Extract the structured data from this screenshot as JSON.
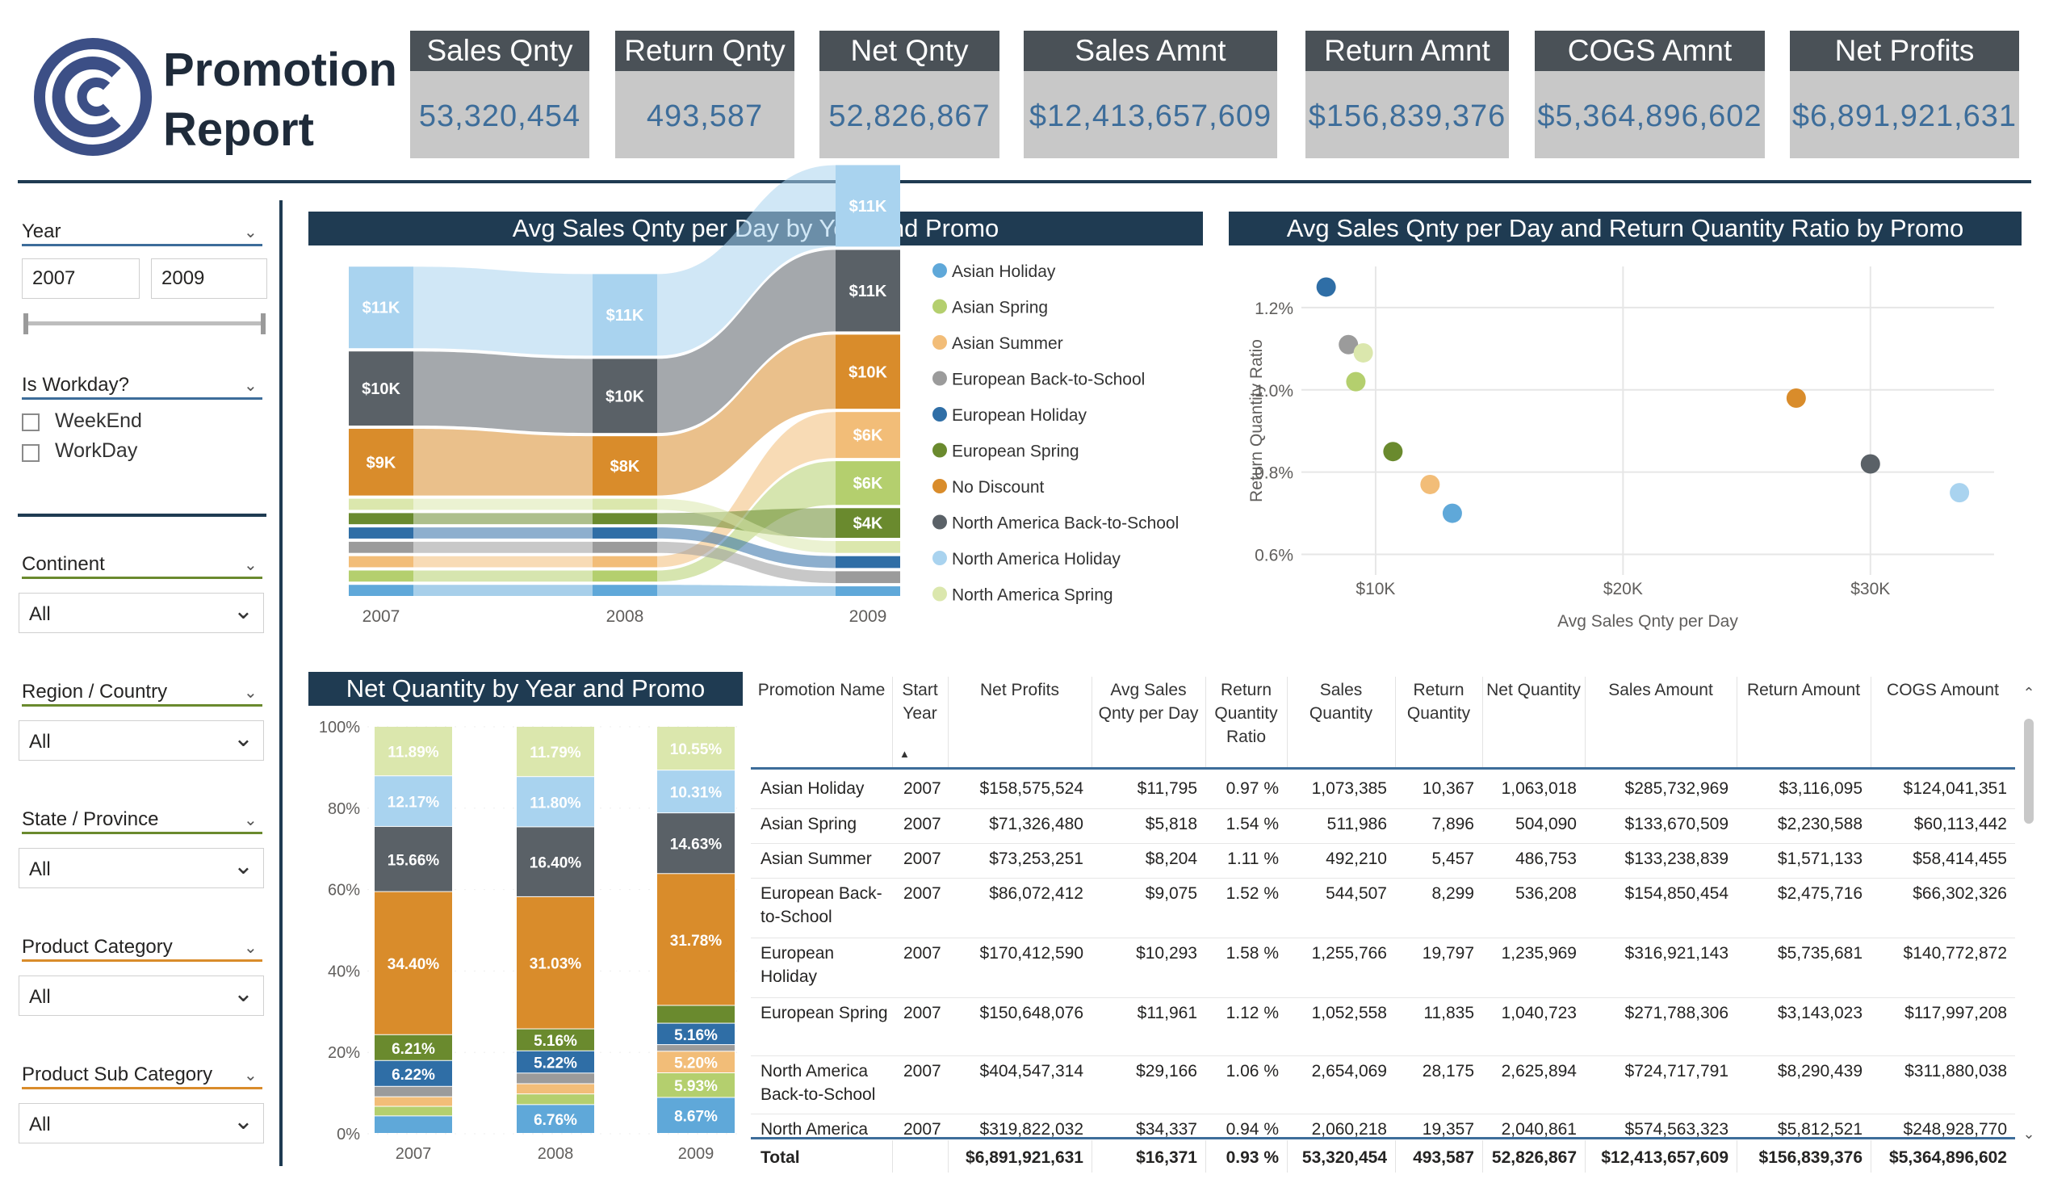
{
  "header": {
    "title_line1": "Promotion",
    "title_line2": "Report",
    "kpis": [
      {
        "label": "Sales Qnty",
        "value": "53,320,454"
      },
      {
        "label": "Return Qnty",
        "value": "493,587"
      },
      {
        "label": "Net Qnty",
        "value": "52,826,867"
      },
      {
        "label": "Sales Amnt",
        "value": "$12,413,657,609"
      },
      {
        "label": "Return Amnt",
        "value": "$156,839,376"
      },
      {
        "label": "COGS Amnt",
        "value": "$5,364,896,602"
      },
      {
        "label": "Net Profits",
        "value": "$6,891,921,631"
      }
    ]
  },
  "filters": {
    "year": {
      "label": "Year",
      "from": "2007",
      "to": "2009"
    },
    "workday": {
      "label": "Is Workday?",
      "options": [
        "WeekEnd",
        "WorkDay"
      ]
    },
    "continent": {
      "label": "Continent",
      "value": "All"
    },
    "region": {
      "label": "Region / Country",
      "value": "All"
    },
    "state": {
      "label": "State / Province",
      "value": "All"
    },
    "category": {
      "label": "Product Category",
      "value": "All"
    },
    "subcategory": {
      "label": "Product Sub Category",
      "value": "All"
    },
    "colors": {
      "year": "#3d6d9a",
      "workday": "#3d6d9a",
      "continent": "#6a8a2e",
      "region": "#6a8a2e",
      "state": "#6a8a2e",
      "category": "#d98c2b",
      "subcategory": "#d98c2b"
    }
  },
  "chart_data": [
    {
      "type": "area",
      "subtype": "ribbon",
      "title": "Avg Sales Qnty per Day by Year and Promo",
      "categories": [
        "2007",
        "2008",
        "2009"
      ],
      "series": [
        {
          "name": "Asian Holiday",
          "color": "#5fa8d9",
          "values": [
            1500,
            1500,
            1300
          ]
        },
        {
          "name": "Asian Spring",
          "color": "#b4cf6e",
          "values": [
            1500,
            1500,
            5900
          ]
        },
        {
          "name": "Asian Summer",
          "color": "#f2bd78",
          "values": [
            1500,
            1500,
            6200
          ]
        },
        {
          "name": "European Back-to-School",
          "color": "#9b9b9b",
          "values": [
            1500,
            1500,
            1600
          ]
        },
        {
          "name": "European Holiday",
          "color": "#2f6ea6",
          "values": [
            1500,
            1500,
            1600
          ]
        },
        {
          "name": "European Spring",
          "color": "#6a8a2e",
          "values": [
            1500,
            1500,
            4000
          ]
        },
        {
          "name": "No Discount",
          "color": "#d98c2b",
          "values": [
            9000,
            8000,
            10000
          ]
        },
        {
          "name": "North America Back-to-School",
          "color": "#5a6167",
          "values": [
            10000,
            10000,
            11000
          ]
        },
        {
          "name": "North America Holiday",
          "color": "#a9d3ef",
          "values": [
            11000,
            11000,
            11000
          ]
        },
        {
          "name": "North America Spring",
          "color": "#dbe7ad",
          "values": [
            1500,
            1500,
            1600
          ]
        }
      ],
      "data_labels": [
        {
          "category": "2007",
          "series": "North America Holiday",
          "text": "$11K"
        },
        {
          "category": "2007",
          "series": "North America Back-to-School",
          "text": "$10K"
        },
        {
          "category": "2007",
          "series": "No Discount",
          "text": "$9K"
        },
        {
          "category": "2008",
          "series": "North America Holiday",
          "text": "$11K"
        },
        {
          "category": "2008",
          "series": "North America Back-to-School",
          "text": "$10K"
        },
        {
          "category": "2008",
          "series": "No Discount",
          "text": "$8K"
        },
        {
          "category": "2009",
          "series": "North America Holiday",
          "text": "$11K"
        },
        {
          "category": "2009",
          "series": "North America Back-to-School",
          "text": "$11K"
        },
        {
          "category": "2009",
          "series": "No Discount",
          "text": "$10K"
        },
        {
          "category": "2009",
          "series": "Asian Summer",
          "text": "$6K"
        },
        {
          "category": "2009",
          "series": "Asian Spring",
          "text": "$6K"
        },
        {
          "category": "2009",
          "series": "European Spring",
          "text": "$4K"
        }
      ],
      "legend": "right"
    },
    {
      "type": "scatter",
      "title": "Avg Sales Qnty per Day and Return Quantity Ratio by Promo",
      "xlabel": "Avg Sales Qnty per Day",
      "ylabel": "Return Quantity Ratio",
      "xlim": [
        7000,
        35000
      ],
      "ylim": [
        0.55,
        1.3
      ],
      "xticks": [
        {
          "v": 10000,
          "label": "$10K"
        },
        {
          "v": 20000,
          "label": "$20K"
        },
        {
          "v": 30000,
          "label": "$30K"
        }
      ],
      "yticks": [
        {
          "v": 0.6,
          "label": "0.6%"
        },
        {
          "v": 0.8,
          "label": "0.8%"
        },
        {
          "v": 1.0,
          "label": "1.0%"
        },
        {
          "v": 1.2,
          "label": "1.2%"
        }
      ],
      "points": [
        {
          "name": "European Holiday",
          "x": 8000,
          "y": 1.25,
          "color": "#2f6ea6"
        },
        {
          "name": "European Back-to-School",
          "x": 8900,
          "y": 1.11,
          "color": "#9b9b9b"
        },
        {
          "name": "North America Spring",
          "x": 9500,
          "y": 1.09,
          "color": "#dbe7ad"
        },
        {
          "name": "Asian Spring",
          "x": 9200,
          "y": 1.02,
          "color": "#b4cf6e"
        },
        {
          "name": "European Spring",
          "x": 10700,
          "y": 0.85,
          "color": "#6a8a2e"
        },
        {
          "name": "Asian Summer",
          "x": 12200,
          "y": 0.77,
          "color": "#f2bd78"
        },
        {
          "name": "Asian Holiday",
          "x": 13100,
          "y": 0.7,
          "color": "#5fa8d9"
        },
        {
          "name": "No Discount",
          "x": 27000,
          "y": 0.98,
          "color": "#d98c2b"
        },
        {
          "name": "North America Back-to-School",
          "x": 30000,
          "y": 0.82,
          "color": "#5a6167"
        },
        {
          "name": "North America Holiday",
          "x": 33600,
          "y": 0.75,
          "color": "#a9d3ef"
        }
      ]
    },
    {
      "type": "bar",
      "subtype": "100% stacked column",
      "title": "Net Quantity by Year and Promo",
      "categories": [
        "2007",
        "2008",
        "2009"
      ],
      "yticks": [
        "0%",
        "20%",
        "40%",
        "60%",
        "80%",
        "100%"
      ],
      "series": [
        {
          "name": "Asian Holiday",
          "color": "#5fa8d9",
          "values": [
            4.2,
            6.76,
            8.67
          ]
        },
        {
          "name": "Asian Spring",
          "color": "#b4cf6e",
          "values": [
            2.3,
            2.5,
            5.93
          ]
        },
        {
          "name": "Asian Summer",
          "color": "#f2bd78",
          "values": [
            2.3,
            2.4,
            5.2
          ]
        },
        {
          "name": "European Back-to-School",
          "color": "#9b9b9b",
          "values": [
            2.5,
            2.5,
            1.6
          ]
        },
        {
          "name": "European Holiday",
          "color": "#2f6ea6",
          "values": [
            6.22,
            5.22,
            5.16
          ]
        },
        {
          "name": "European Spring",
          "color": "#6a8a2e",
          "values": [
            6.21,
            5.16,
            4.3
          ]
        },
        {
          "name": "No Discount",
          "color": "#d98c2b",
          "values": [
            34.4,
            31.03,
            31.78
          ]
        },
        {
          "name": "North America Back-to-School",
          "color": "#5a6167",
          "values": [
            15.66,
            16.4,
            14.63
          ]
        },
        {
          "name": "North America Holiday",
          "color": "#a9d3ef",
          "values": [
            12.17,
            11.8,
            10.31
          ]
        },
        {
          "name": "North America Spring",
          "color": "#dbe7ad",
          "values": [
            11.89,
            11.79,
            10.55
          ]
        }
      ],
      "labels": [
        [
          "",
          "",
          "",
          "",
          "6.22%",
          "6.21%",
          "34.40%",
          "15.66%",
          "12.17%",
          "11.89%"
        ],
        [
          "6.76%",
          "",
          "",
          "",
          "5.22%",
          "5.16%",
          "31.03%",
          "16.40%",
          "11.80%",
          "11.79%"
        ],
        [
          "8.67%",
          "5.93%",
          "5.20%",
          "",
          "5.16%",
          "",
          "31.78%",
          "14.63%",
          "10.31%",
          "10.55%"
        ]
      ]
    },
    {
      "type": "table",
      "columns": [
        "Promotion Name",
        "Start Year",
        "Net Profits",
        "Avg Sales Qnty per Day",
        "Return Quantity Ratio",
        "Sales Quantity",
        "Return Quantity",
        "Net Quantity",
        "Sales Amount",
        "Return Amount",
        "COGS Amount"
      ],
      "rows": [
        [
          "Asian Holiday",
          "2007",
          "$158,575,524",
          "$11,795",
          "0.97 %",
          "1,073,385",
          "10,367",
          "1,063,018",
          "$285,732,969",
          "$3,116,095",
          "$124,041,351"
        ],
        [
          "Asian Spring",
          "2007",
          "$71,326,480",
          "$5,818",
          "1.54 %",
          "511,986",
          "7,896",
          "504,090",
          "$133,670,509",
          "$2,230,588",
          "$60,113,442"
        ],
        [
          "Asian Summer",
          "2007",
          "$73,253,251",
          "$8,204",
          "1.11 %",
          "492,210",
          "5,457",
          "486,753",
          "$133,238,839",
          "$1,571,133",
          "$58,414,455"
        ],
        [
          "European Back-to-School",
          "2007",
          "$86,072,412",
          "$9,075",
          "1.52 %",
          "544,507",
          "8,299",
          "536,208",
          "$154,850,454",
          "$2,475,716",
          "$66,302,326"
        ],
        [
          "European Holiday",
          "2007",
          "$170,412,590",
          "$10,293",
          "1.58 %",
          "1,255,766",
          "19,797",
          "1,235,969",
          "$316,921,143",
          "$5,735,681",
          "$140,772,872"
        ],
        [
          "European Spring",
          "2007",
          "$150,648,076",
          "$11,961",
          "1.12 %",
          "1,052,558",
          "11,835",
          "1,040,723",
          "$271,788,306",
          "$3,143,023",
          "$117,997,208"
        ],
        [
          "North America Back-to-School",
          "2007",
          "$404,547,314",
          "$29,166",
          "1.06 %",
          "2,654,069",
          "28,175",
          "2,625,894",
          "$724,717,791",
          "$8,290,439",
          "$311,880,038"
        ],
        [
          "North America",
          "2007",
          "$319,822,032",
          "$34,337",
          "0.94 %",
          "2,060,218",
          "19,357",
          "2,040,861",
          "$574,563,323",
          "$5,812,521",
          "$248,928,770"
        ]
      ],
      "total": [
        "Total",
        "",
        "$6,891,921,631",
        "$16,371",
        "0.93 %",
        "53,320,454",
        "493,587",
        "52,826,867",
        "$12,413,657,609",
        "$156,839,376",
        "$5,364,896,602"
      ]
    }
  ]
}
